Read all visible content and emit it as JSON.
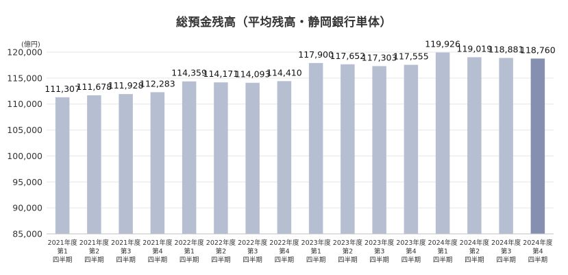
{
  "chart_data": {
    "type": "bar",
    "title": "総預金残高（平均残高・静岡銀行単体）",
    "unit": "(億円)",
    "categories": [
      [
        "2021年度",
        "第1",
        "四半期"
      ],
      [
        "2021年度",
        "第2",
        "四半期"
      ],
      [
        "2021年度",
        "第3",
        "四半期"
      ],
      [
        "2021年度",
        "第4",
        "四半期"
      ],
      [
        "2022年度",
        "第1",
        "四半期"
      ],
      [
        "2022年度",
        "第2",
        "四半期"
      ],
      [
        "2022年度",
        "第3",
        "四半期"
      ],
      [
        "2022年度",
        "第4",
        "四半期"
      ],
      [
        "2023年度",
        "第1",
        "四半期"
      ],
      [
        "2023年度",
        "第2",
        "四半期"
      ],
      [
        "2023年度",
        "第3",
        "四半期"
      ],
      [
        "2023年度",
        "第4",
        "四半期"
      ],
      [
        "2024年度",
        "第1",
        "四半期"
      ],
      [
        "2024年度",
        "第2",
        "四半期"
      ],
      [
        "2024年度",
        "第3",
        "四半期"
      ],
      [
        "2024年度",
        "第4",
        "四半期"
      ]
    ],
    "values": [
      111307,
      111678,
      111928,
      112283,
      114359,
      114171,
      114093,
      114410,
      117900,
      117652,
      117303,
      117555,
      119926,
      119019,
      118881,
      118760
    ],
    "value_labels": [
      "111,307",
      "111,678",
      "111,928",
      "112,283",
      "114,359",
      "114,171",
      "114,093",
      "114,410",
      "117,900",
      "117,652",
      "117,303",
      "117,555",
      "119,926",
      "119,019",
      "118,881",
      "118,760"
    ],
    "yticks": [
      "85,000",
      "90,000",
      "95,000",
      "100,000",
      "105,000",
      "110,000",
      "115,000",
      "120,000"
    ],
    "ylim": [
      85000,
      120000
    ],
    "grid": true,
    "colors": {
      "bar": "#b6bfd1",
      "highlight": "#8590b0",
      "grid": "#e6e6e6"
    },
    "highlight_index": 15
  }
}
